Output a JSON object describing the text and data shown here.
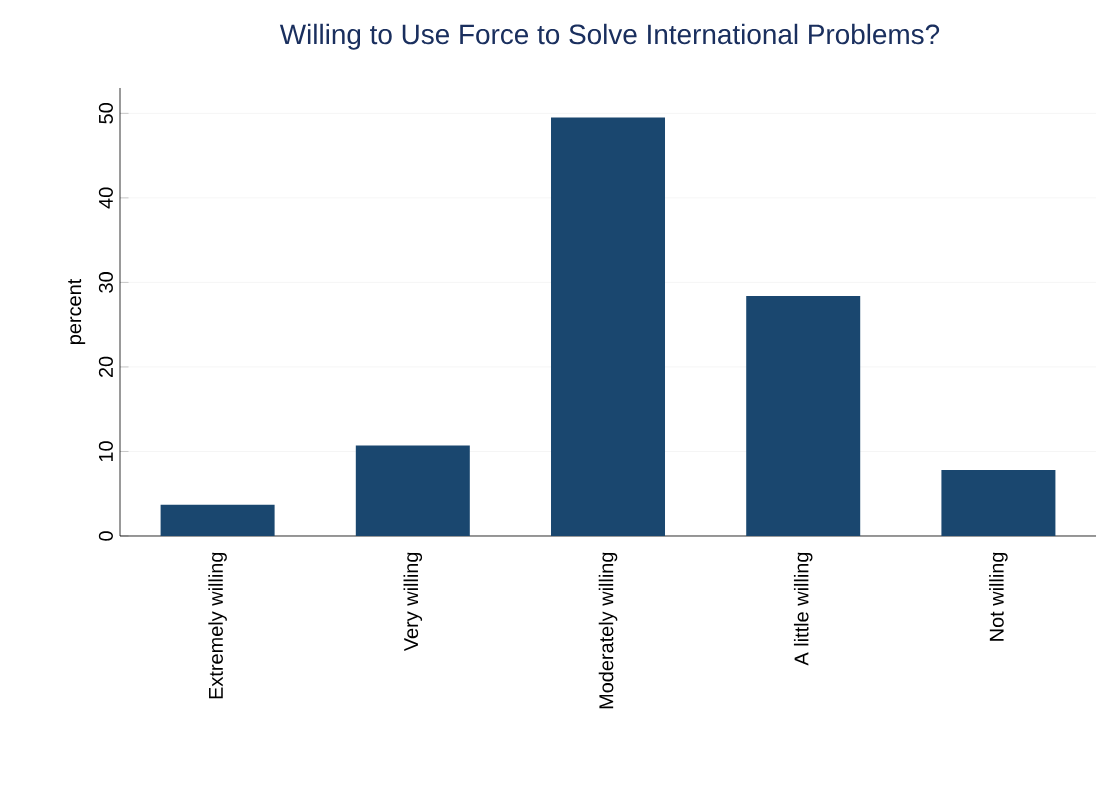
{
  "chart_data": {
    "type": "bar",
    "title": "Willing to Use Force to Solve International Problems?",
    "ylabel": "percent",
    "categories": [
      "Extremely willing",
      "Very willing",
      "Moderately willing",
      "A little willing",
      "Not willing"
    ],
    "values": [
      3.7,
      10.7,
      49.5,
      28.4,
      7.8
    ],
    "color": "#1a476f",
    "ylim": [
      0,
      53
    ],
    "yticks": [
      0,
      10,
      20,
      30,
      40,
      50
    ],
    "grid": "y"
  }
}
